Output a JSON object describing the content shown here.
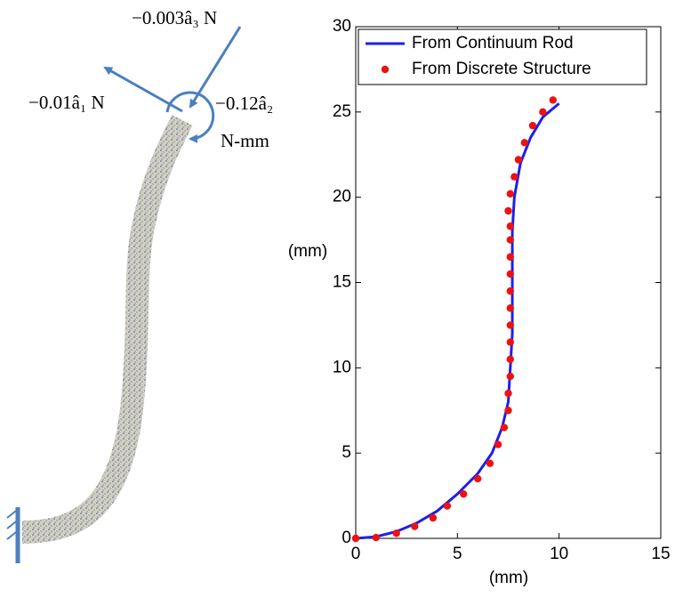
{
  "annotations": [
    "−0.003â₃ N",
    "−0.01â₁ N",
    "−0.12â₂",
    "N-mm"
  ],
  "chart_data": {
    "type": "line",
    "xlabel": "(mm)",
    "ylabel": "(mm)",
    "xlim": [
      0,
      15
    ],
    "xticks": [
      0,
      5,
      10,
      15
    ],
    "ylim": [
      0,
      30
    ],
    "yticks": [
      0,
      5,
      10,
      15,
      20,
      25,
      30
    ],
    "legend": "upper left",
    "series": [
      {
        "name": "From Continuum Rod",
        "color": "#1f1fe8",
        "style": "line",
        "x": [
          0,
          1,
          2,
          3,
          4,
          5,
          6,
          6.7,
          7.2,
          7.5,
          7.6,
          7.7,
          7.7,
          7.7,
          7.7,
          7.8,
          8.1,
          8.6,
          9.2,
          10
        ],
        "values": [
          0,
          0.1,
          0.4,
          0.9,
          1.6,
          2.6,
          3.8,
          5,
          6.5,
          8,
          10,
          12,
          14,
          16,
          18,
          20,
          22,
          23.5,
          24.7,
          25.5
        ]
      },
      {
        "name": "From Discrete Structure",
        "color": "#ee1111",
        "style": "markers",
        "x": [
          0,
          1,
          2,
          2.9,
          3.8,
          4.5,
          5.3,
          6,
          6.6,
          7,
          7.3,
          7.5,
          7.5,
          7.6,
          7.6,
          7.6,
          7.6,
          7.6,
          7.6,
          7.6,
          7.6,
          7.6,
          7.6,
          7.5,
          7.6,
          7.8,
          8,
          8.3,
          8.7,
          9.2,
          9.7
        ],
        "values": [
          0,
          0.05,
          0.3,
          0.7,
          1.2,
          1.9,
          2.6,
          3.5,
          4.4,
          5.5,
          6.5,
          7.5,
          8.5,
          9.5,
          10.5,
          11.5,
          12.5,
          13.5,
          14.5,
          15.5,
          16.5,
          17.5,
          18.3,
          19.2,
          20.2,
          21.2,
          22.2,
          23.2,
          24.2,
          25,
          25.7
        ]
      }
    ]
  }
}
